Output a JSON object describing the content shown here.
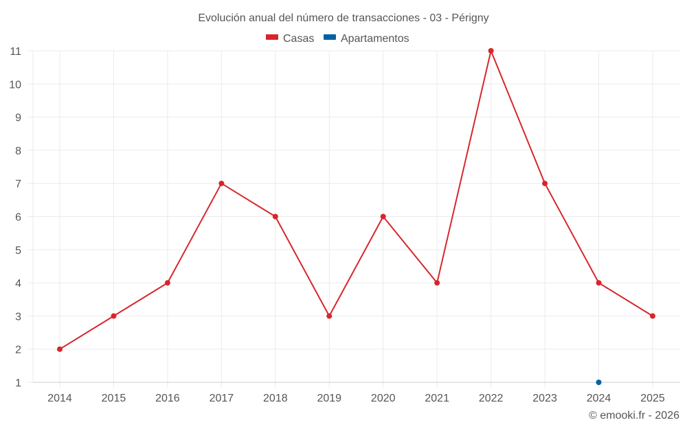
{
  "title": "Evolución anual del número de transacciones - 03 - Périgny",
  "legend": [
    {
      "label": "Casas",
      "color": "#d7262b"
    },
    {
      "label": "Apartamentos",
      "color": "#0063a0"
    }
  ],
  "credit": "© emooki.fr - 2026",
  "chart_data": {
    "type": "line",
    "title": "Evolución anual del número de transacciones - 03 - Périgny",
    "xlabel": "",
    "ylabel": "",
    "categories": [
      "2014",
      "2015",
      "2016",
      "2017",
      "2018",
      "2019",
      "2020",
      "2021",
      "2022",
      "2023",
      "2024",
      "2025"
    ],
    "series": [
      {
        "name": "Casas",
        "color": "#d7262b",
        "values": [
          2,
          3,
          4,
          7,
          6,
          3,
          6,
          4,
          11,
          7,
          4,
          3
        ]
      },
      {
        "name": "Apartamentos",
        "color": "#0063a0",
        "values": [
          null,
          null,
          null,
          null,
          null,
          null,
          null,
          null,
          null,
          null,
          1,
          null
        ]
      }
    ],
    "yticks": [
      1,
      2,
      3,
      4,
      5,
      6,
      7,
      8,
      9,
      10,
      11
    ],
    "ylim": [
      1,
      11
    ],
    "grid": true,
    "legend_position": "top"
  }
}
